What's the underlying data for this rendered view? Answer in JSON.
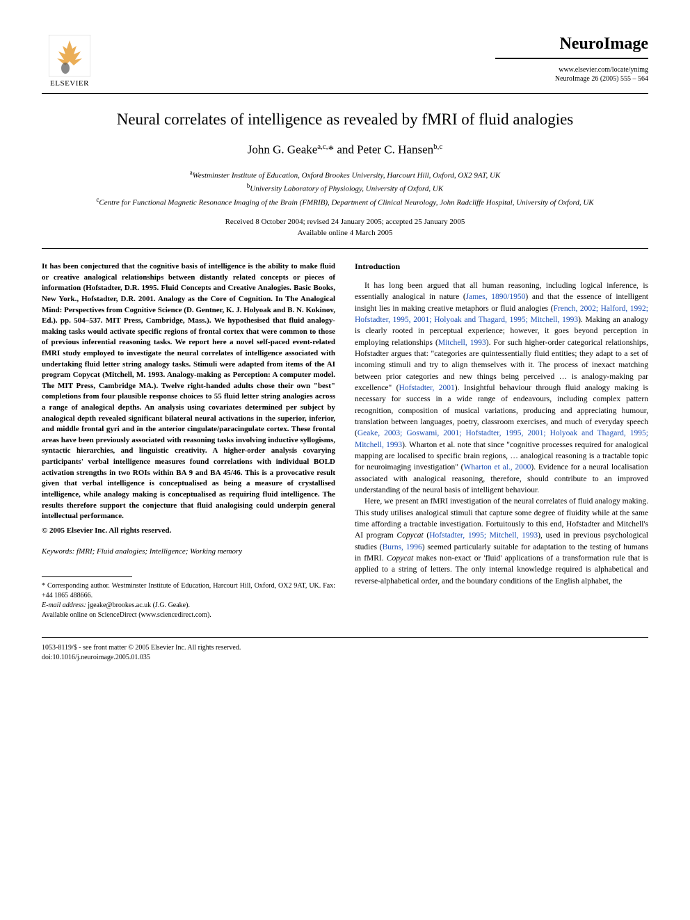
{
  "publisher": {
    "name": "ELSEVIER",
    "logo_tree_color": "#e8a03a",
    "logo_figure_color": "#555"
  },
  "journal": {
    "name": "NeuroImage",
    "url": "www.elsevier.com/locate/ynimg",
    "citation": "NeuroImage 26 (2005) 555 – 564"
  },
  "article": {
    "title": "Neural correlates of intelligence as revealed by fMRI of fluid analogies",
    "authors_html": "John G. Geake<sup>a,c,</sup>* and Peter C. Hansen<sup>b,c</sup>",
    "affiliations": [
      {
        "sup": "a",
        "text": "Westminster Institute of Education, Oxford Brookes University, Harcourt Hill, Oxford, OX2 9AT, UK"
      },
      {
        "sup": "b",
        "text": "University Laboratory of Physiology, University of Oxford, UK"
      },
      {
        "sup": "c",
        "text": "Centre for Functional Magnetic Resonance Imaging of the Brain (FMRIB), Department of Clinical Neurology, John Radcliffe Hospital, University of Oxford, UK"
      }
    ],
    "dates_line1": "Received 8 October 2004; revised 24 January 2005; accepted 25 January 2005",
    "dates_line2": "Available online 4 March 2005"
  },
  "abstract": {
    "text": "It has been conjectured that the cognitive basis of intelligence is the ability to make fluid or creative analogical relationships between distantly related concepts or pieces of information (Hofstadter, D.R. 1995. Fluid Concepts and Creative Analogies. Basic Books, New York., Hofstadter, D.R. 2001. Analogy as the Core of Cognition. In The Analogical Mind: Perspectives from Cognitive Science (D. Gentner, K. J. Holyoak and B. N. Kokinov, Ed.). pp. 504–537. MIT Press, Cambridge, Mass.). We hypothesised that fluid analogy-making tasks would activate specific regions of frontal cortex that were common to those of previous inferential reasoning tasks. We report here a novel self-paced event-related fMRI study employed to investigate the neural correlates of intelligence associated with undertaking fluid letter string analogy tasks. Stimuli were adapted from items of the AI program Copycat (Mitchell, M. 1993. Analogy-making as Perception: A computer model. The MIT Press, Cambridge MA.). Twelve right-handed adults chose their own \"best\" completions from four plausible response choices to 55 fluid letter string analogies across a range of analogical depths. An analysis using covariates determined per subject by analogical depth revealed significant bilateral neural activations in the superior, inferior, and middle frontal gyri and in the anterior cingulate/paracingulate cortex. These frontal areas have been previously associated with reasoning tasks involving inductive syllogisms, syntactic hierarchies, and linguistic creativity. A higher-order analysis covarying participants' verbal intelligence measures found correlations with individual BOLD activation strengths in two ROIs within BA 9 and BA 45/46. This is a provocative result given that verbal intelligence is conceptualised as being a measure of crystallised intelligence, while analogy making is conceptualised as requiring fluid intelligence. The results therefore support the conjecture that fluid analogising could underpin general intellectual performance.",
    "copyright": "© 2005 Elsevier Inc. All rights reserved."
  },
  "keywords": {
    "label": "Keywords:",
    "text": " fMRI; Fluid analogies; Intelligence; Working memory"
  },
  "footnotes": {
    "corr": "* Corresponding author. Westminster Institute of Education, Harcourt Hill, Oxford, OX2 9AT, UK. Fax: +44 1865 488666.",
    "email_label": "E-mail address:",
    "email": " jgeake@brookes.ac.uk (J.G. Geake).",
    "online": "Available online on ScienceDirect (www.sciencedirect.com)."
  },
  "intro": {
    "heading": "Introduction",
    "para1_parts": [
      {
        "t": "It has long been argued that all human reasoning, including logical inference, is essentially analogical in nature ("
      },
      {
        "c": "James, 1890/1950"
      },
      {
        "t": ") and that the essence of intelligent insight lies in making creative metaphors or fluid analogies ("
      },
      {
        "c": "French, 2002; Halford, 1992; Hofstadter, 1995, 2001; Holyoak and Thagard, 1995; Mitchell, 1993"
      },
      {
        "t": "). Making an analogy is clearly rooted in perceptual experience; however, it goes beyond perception in employing relationships ("
      },
      {
        "c": "Mitchell, 1993"
      },
      {
        "t": "). For such higher-order categorical relationships, Hofstadter argues that: \"categories are quintessentially fluid entities; they adapt to a set of incoming stimuli and try to align themselves with it. The process of inexact matching between prior categories and new things being perceived … is analogy-making par excellence\" ("
      },
      {
        "c": "Hofstadter, 2001"
      },
      {
        "t": "). Insightful behaviour through fluid analogy making is necessary for success in a wide range of endeavours, including complex pattern recognition, composition of musical variations, producing and appreciating humour, translation between languages, poetry, classroom exercises, and much of everyday speech ("
      },
      {
        "c": "Geake, 2003; Goswami, 2001; Hofstadter, 1995, 2001; Holyoak and Thagard, 1995; Mitchell, 1993"
      },
      {
        "t": "). Wharton et al. note that since \"cognitive processes required for analogical mapping are localised to specific brain regions, … analogical reasoning is a tractable topic for neuroimaging investigation\" ("
      },
      {
        "c": "Wharton et al., 2000"
      },
      {
        "t": "). Evidence for a neural localisation associated with analogical reasoning, therefore, should contribute to an improved understanding of the neural basis of intelligent behaviour."
      }
    ],
    "para2_parts": [
      {
        "t": "Here, we present an fMRI investigation of the neural correlates of fluid analogy making. This study utilises analogical stimuli that capture some degree of fluidity while at the same time affording a tractable investigation. Fortuitously to this end, Hofstadter and Mitchell's AI program "
      },
      {
        "i": "Copycat"
      },
      {
        "t": " ("
      },
      {
        "c": "Hofstadter, 1995; Mitchell, 1993"
      },
      {
        "t": "), used in previous psychological studies ("
      },
      {
        "c": "Burns, 1996"
      },
      {
        "t": ") seemed particularly suitable for adaptation to the testing of humans in fMRI. "
      },
      {
        "i": "Copycat"
      },
      {
        "t": " makes non-exact or 'fluid' applications of a transformation rule that is applied to a string of letters. The only internal knowledge required is alphabetical and reverse-alphabetical order, and the boundary conditions of the English alphabet, the"
      }
    ]
  },
  "footer": {
    "line1": "1053-8119/$ - see front matter © 2005 Elsevier Inc. All rights reserved.",
    "line2": "doi:10.1016/j.neuroimage.2005.01.035"
  },
  "colors": {
    "citation_link": "#1a4db3",
    "text": "#000000",
    "background": "#ffffff"
  }
}
